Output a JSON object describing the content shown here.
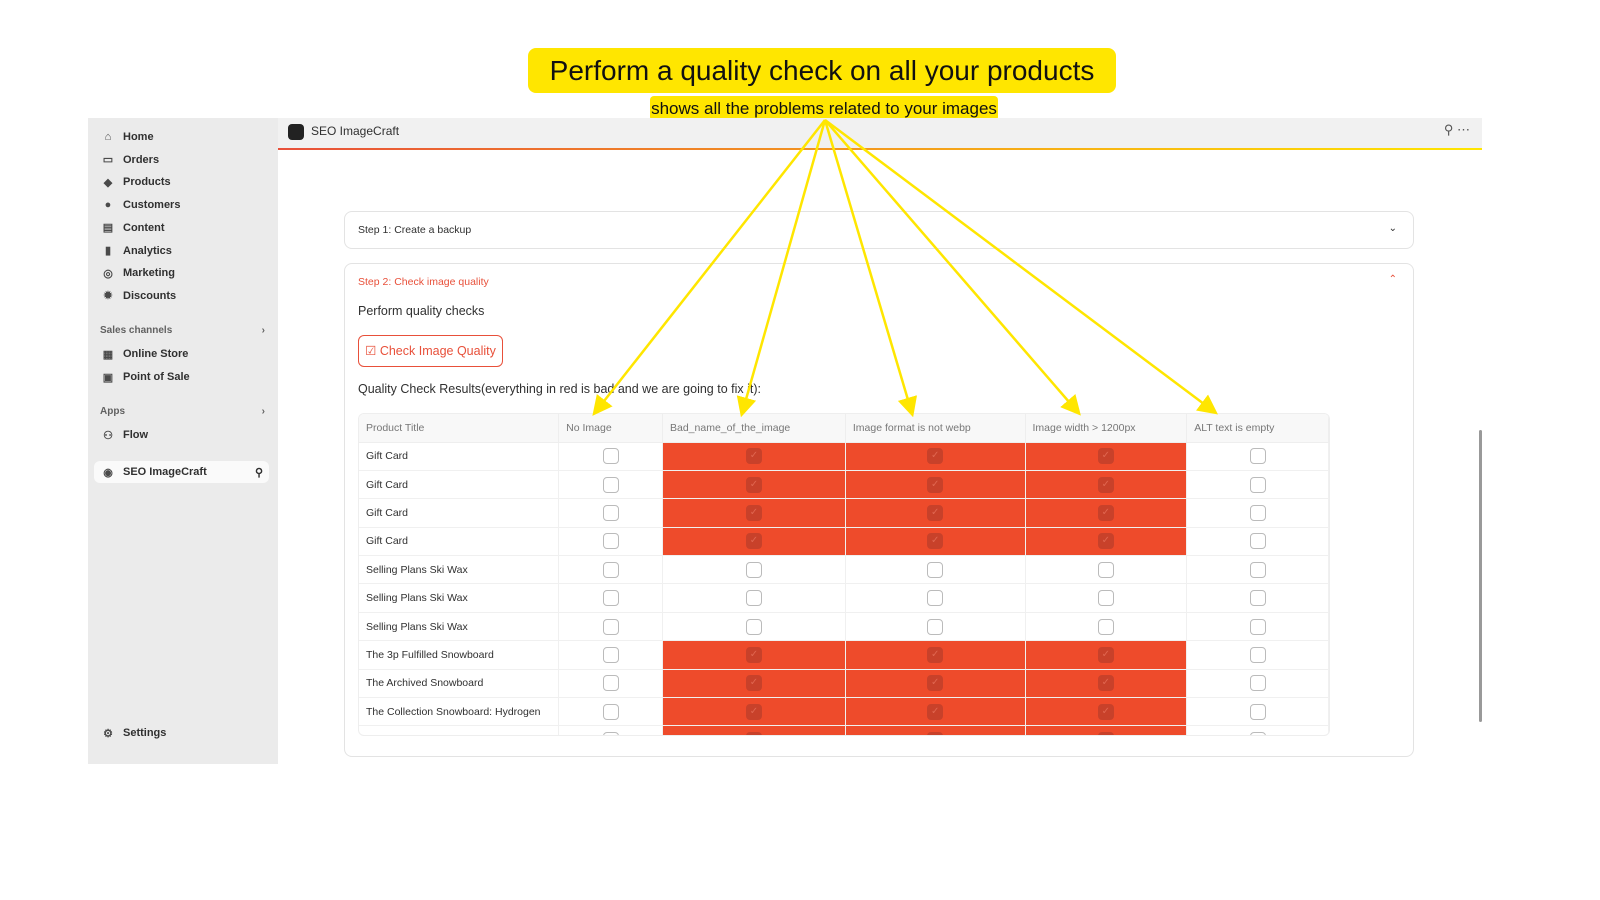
{
  "banner": {
    "title": "Perform a quality check on all your products",
    "subtitle": "shows all the problems related to your images"
  },
  "sidebar": {
    "items": [
      {
        "label": "Home",
        "icon": "home-icon"
      },
      {
        "label": "Orders",
        "icon": "orders-icon"
      },
      {
        "label": "Products",
        "icon": "tag-icon"
      },
      {
        "label": "Customers",
        "icon": "person-icon"
      },
      {
        "label": "Content",
        "icon": "content-icon"
      },
      {
        "label": "Analytics",
        "icon": "bar-chart-icon"
      },
      {
        "label": "Marketing",
        "icon": "target-icon"
      },
      {
        "label": "Discounts",
        "icon": "discount-icon"
      }
    ],
    "sales_channels": "Sales channels",
    "channels": [
      "Online Store",
      "Point of Sale"
    ],
    "apps": "Apps",
    "app_items": [
      "Flow"
    ],
    "active_app": "SEO ImageCraft",
    "settings": "Settings"
  },
  "header": {
    "title": "SEO ImageCraft"
  },
  "step1": {
    "title": "Step 1: Create a backup"
  },
  "step2": {
    "title": "Step 2: Check image quality",
    "subtitle": "Perform quality checks",
    "button": "Check Image Quality",
    "results_label": "Quality Check Results(everything in red is bad and we are going to fix it):"
  },
  "table": {
    "columns": [
      "Product Title",
      "No Image",
      "Bad_name_of_the_image",
      "Image format is not webp",
      "Image width > 1200px",
      "ALT text is empty"
    ],
    "rows": [
      {
        "title": "Gift Card",
        "flags": [
          false,
          true,
          true,
          true,
          false
        ]
      },
      {
        "title": "Gift Card",
        "flags": [
          false,
          true,
          true,
          true,
          false
        ]
      },
      {
        "title": "Gift Card",
        "flags": [
          false,
          true,
          true,
          true,
          false
        ]
      },
      {
        "title": "Gift Card",
        "flags": [
          false,
          true,
          true,
          true,
          false
        ]
      },
      {
        "title": "Selling Plans Ski Wax",
        "flags": [
          false,
          false,
          false,
          false,
          false
        ]
      },
      {
        "title": "Selling Plans Ski Wax",
        "flags": [
          false,
          false,
          false,
          false,
          false
        ]
      },
      {
        "title": "Selling Plans Ski Wax",
        "flags": [
          false,
          false,
          false,
          false,
          false
        ]
      },
      {
        "title": "The 3p Fulfilled Snowboard",
        "flags": [
          false,
          true,
          true,
          true,
          false
        ]
      },
      {
        "title": "The Archived Snowboard",
        "flags": [
          false,
          true,
          true,
          true,
          false
        ]
      },
      {
        "title": "The Collection Snowboard: Hydrogen",
        "flags": [
          false,
          true,
          true,
          true,
          false
        ]
      },
      {
        "title": "",
        "flags": [
          false,
          true,
          true,
          true,
          false
        ]
      }
    ]
  },
  "colors": {
    "accent": "#e8503a",
    "bad": "#ee4b2b",
    "highlight": "#ffe600"
  }
}
